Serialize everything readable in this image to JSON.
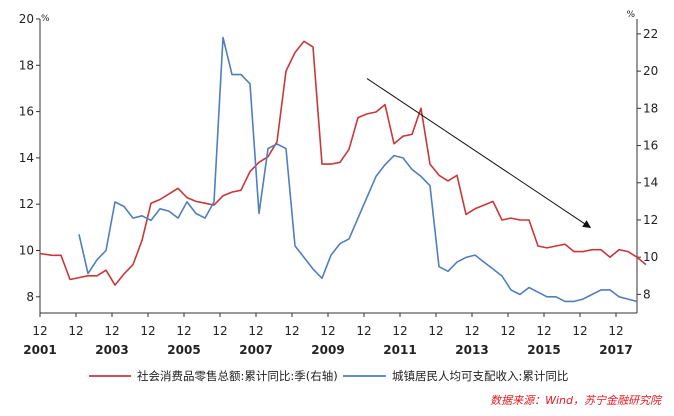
{
  "chart_data": {
    "type": "line",
    "left_axis": {
      "unit": "%",
      "min": 7.3,
      "max": 20,
      "ticks": [
        8,
        10,
        12,
        14,
        16,
        18,
        20
      ]
    },
    "right_axis": {
      "unit": "%",
      "min": 7.0,
      "max": 22.8,
      "ticks": [
        8,
        10,
        12,
        14,
        16,
        18,
        20,
        22
      ]
    },
    "x_axis": {
      "month_label": "12",
      "year_labels": [
        "2001",
        "2003",
        "2005",
        "2007",
        "2009",
        "2011",
        "2013",
        "2015",
        "2017"
      ],
      "x_min": 2001.917,
      "x_max": 2018.5
    },
    "series": [
      {
        "name": "社会消费品零售总额:累计同比:季(右轴)",
        "axis": "right",
        "color": "#c8383b",
        "x": [
          2001.917,
          2002.25,
          2002.5,
          2002.75,
          2003.0,
          2003.25,
          2003.5,
          2003.75,
          2004.0,
          2004.25,
          2004.5,
          2004.75,
          2005.0,
          2005.25,
          2005.5,
          2005.75,
          2006.0,
          2006.25,
          2006.5,
          2006.75,
          2007.0,
          2007.25,
          2007.5,
          2007.75,
          2008.0,
          2008.25,
          2008.5,
          2008.75,
          2009.0,
          2009.25,
          2009.5,
          2009.75,
          2010.0,
          2010.25,
          2010.5,
          2010.75,
          2011.0,
          2011.25,
          2011.5,
          2011.75,
          2012.0,
          2012.25,
          2012.5,
          2012.75,
          2013.0,
          2013.25,
          2013.5,
          2013.75,
          2014.0,
          2014.25,
          2014.5,
          2014.75,
          2015.0,
          2015.25,
          2015.5,
          2015.75,
          2016.0,
          2016.25,
          2016.5,
          2016.75,
          2017.0,
          2017.25,
          2017.5,
          2017.75,
          2018.0,
          2018.25,
          2018.5
        ],
        "values": [
          10.2,
          10.1,
          10.1,
          8.8,
          8.9,
          9.0,
          9.0,
          9.3,
          8.5,
          9.1,
          9.6,
          10.9,
          12.9,
          13.1,
          13.4,
          13.7,
          13.2,
          13.0,
          12.9,
          12.8,
          13.3,
          13.5,
          13.6,
          14.6,
          15.1,
          15.4,
          16.2,
          20.0,
          21.0,
          21.6,
          21.3,
          15.0,
          15.0,
          15.1,
          15.8,
          17.5,
          17.7,
          17.8,
          18.2,
          16.1,
          16.5,
          16.6,
          18.0,
          15.0,
          14.4,
          14.1,
          14.4,
          12.3,
          12.6,
          12.8,
          13.0,
          12.0,
          12.1,
          12.0,
          12.0,
          10.6,
          10.5,
          10.6,
          10.7,
          10.3,
          10.3,
          10.4,
          10.4,
          10.0,
          10.4,
          10.3,
          10.0
        ],
        "x_tail": [
          2018.75
        ],
        "values_tail": [
          9.6
        ]
      },
      {
        "name": "城镇居民人均可支配收入:累计同比",
        "axis": "left",
        "color": "#4f7fbe",
        "x": [
          2003.0,
          2003.25,
          2003.5,
          2003.75,
          2004.0,
          2004.25,
          2004.5,
          2004.75,
          2005.0,
          2005.25,
          2005.5,
          2005.75,
          2006.0,
          2006.25,
          2006.5,
          2006.75,
          2007.0,
          2007.25,
          2007.5,
          2007.75,
          2008.0,
          2008.25,
          2008.5,
          2008.75,
          2009.0,
          2009.25,
          2009.5,
          2009.75,
          2010.0,
          2010.25,
          2010.5,
          2010.75,
          2011.0,
          2011.25,
          2011.5,
          2011.75,
          2012.0,
          2012.25,
          2012.5,
          2012.75,
          2013.0,
          2013.25,
          2013.5,
          2013.75,
          2014.0,
          2014.25,
          2014.5,
          2014.75,
          2015.0,
          2015.25,
          2015.5,
          2015.75,
          2016.0,
          2016.25,
          2016.5,
          2016.75,
          2017.0,
          2017.25,
          2017.5,
          2017.75,
          2018.0,
          2018.25,
          2018.5
        ],
        "values": [
          10.7,
          9.0,
          9.6,
          10.0,
          12.1,
          11.9,
          11.4,
          11.5,
          11.3,
          11.8,
          11.7,
          11.4,
          12.1,
          11.6,
          11.4,
          12.1,
          19.2,
          17.6,
          17.6,
          17.2,
          11.6,
          14.4,
          14.6,
          14.4,
          10.2,
          9.7,
          9.2,
          8.8,
          9.8,
          10.3,
          10.5,
          11.4,
          12.3,
          13.2,
          13.7,
          14.1,
          14.0,
          13.5,
          13.2,
          12.8,
          9.3,
          9.1,
          9.5,
          9.7,
          9.8,
          9.5,
          9.2,
          8.9,
          8.3,
          8.1,
          8.4,
          8.2,
          8.0,
          8.0,
          7.8,
          7.8,
          7.9,
          8.1,
          8.3,
          8.3,
          8.0,
          7.9,
          7.8
        ]
      }
    ],
    "annotation": {
      "type": "arrow",
      "from": [
        2011.0,
        19.6
      ],
      "to": [
        2017.2,
        11.6
      ],
      "axis": "right"
    },
    "source": "数据来源：Wind，苏宁金融研究院"
  }
}
